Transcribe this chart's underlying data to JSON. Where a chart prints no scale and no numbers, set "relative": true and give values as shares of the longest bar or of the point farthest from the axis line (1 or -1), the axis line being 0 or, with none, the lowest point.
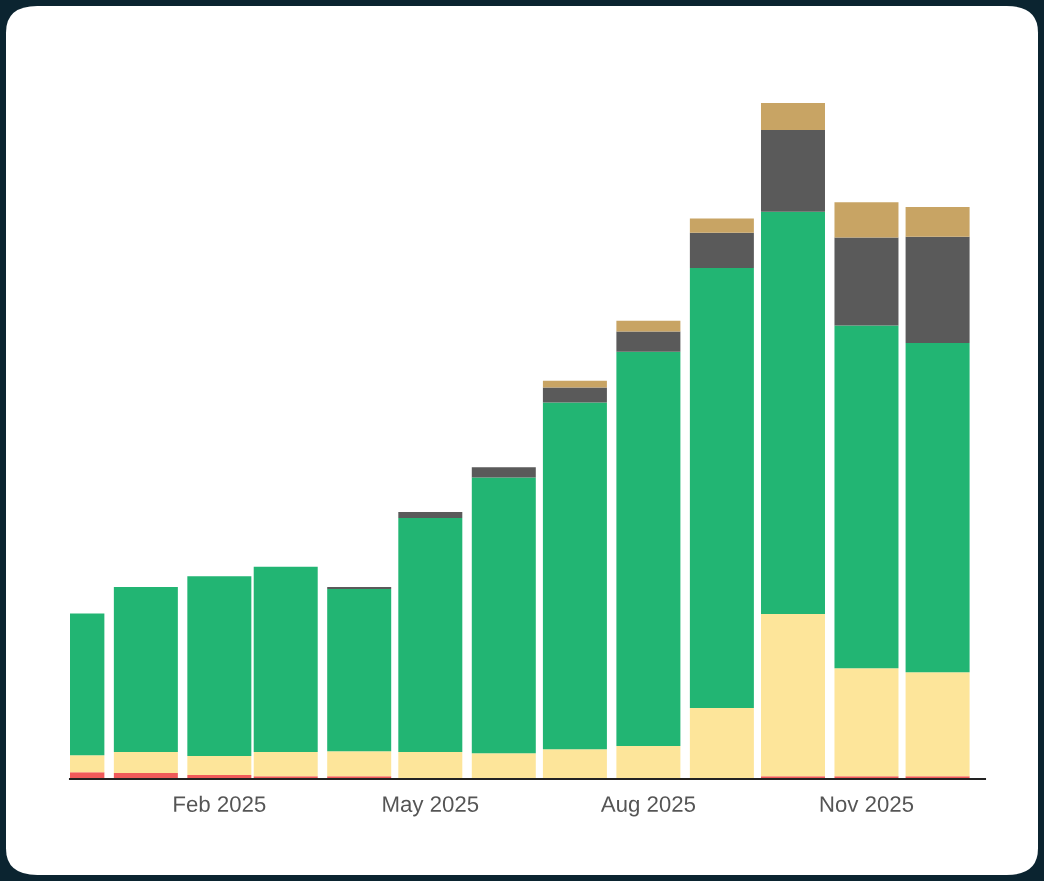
{
  "chart_data": {
    "type": "bar",
    "stacked": true,
    "relative": true,
    "x": [
      "2024-12",
      "2025-01",
      "2025-02",
      "2025-03",
      "2025-04",
      "2025-05",
      "2025-06",
      "2025-07",
      "2025-08",
      "2025-09",
      "2025-10",
      "2025-11",
      "2025-12"
    ],
    "xlim": [
      "2024-11-30",
      "2025-12-21"
    ],
    "xticks": [
      {
        "value": "2025-02",
        "label": "Feb 2025"
      },
      {
        "value": "2025-05",
        "label": "May 2025"
      },
      {
        "value": "2025-08",
        "label": "Aug 2025"
      },
      {
        "value": "2025-11",
        "label": "Nov 2025"
      }
    ],
    "series": [
      {
        "color": "#f05a5a",
        "values": [
          0.01,
          0.009,
          0.006,
          0.004,
          0.004,
          null,
          null,
          null,
          null,
          null,
          0.004,
          0.004,
          0.004
        ]
      },
      {
        "color": "#fde59a",
        "values": [
          0.025,
          0.031,
          0.028,
          0.036,
          0.037,
          0.04,
          0.038,
          0.044,
          0.049,
          0.105,
          0.24,
          0.16,
          0.154
        ]
      },
      {
        "color": "#22b573",
        "values": [
          0.21,
          0.244,
          0.266,
          0.274,
          0.24,
          0.346,
          0.408,
          0.513,
          0.583,
          0.651,
          0.595,
          0.507,
          0.487
        ]
      },
      {
        "color": "#5a5a5a",
        "values": [
          null,
          null,
          null,
          null,
          0.003,
          0.009,
          0.015,
          0.022,
          0.03,
          0.052,
          0.121,
          0.13,
          0.157
        ]
      },
      {
        "color": "#c8a464",
        "values": [
          null,
          null,
          null,
          null,
          null,
          null,
          null,
          0.01,
          0.016,
          0.021,
          0.04,
          0.052,
          0.044
        ]
      }
    ]
  }
}
